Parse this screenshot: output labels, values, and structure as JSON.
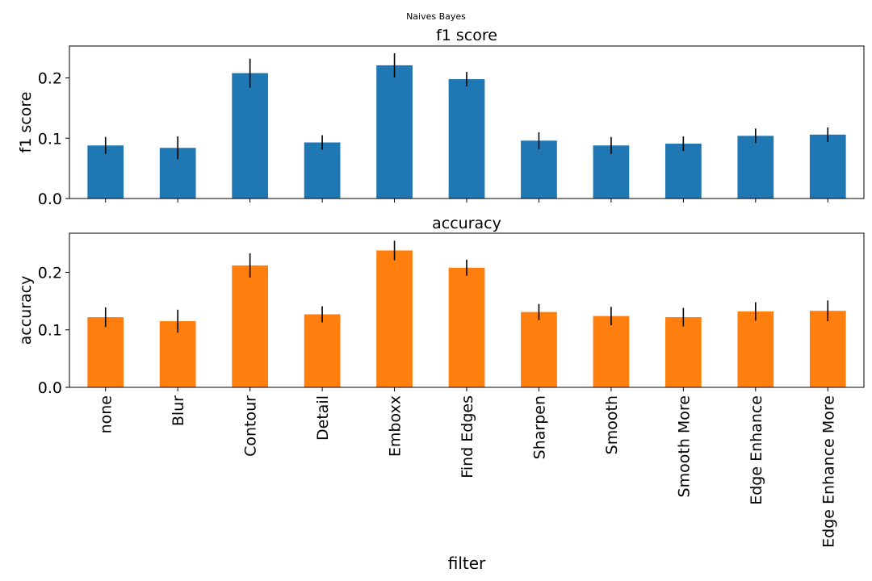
{
  "figure": {
    "suptitle": "Naives Bayes",
    "xlabel": "filter"
  },
  "chart_data": [
    {
      "type": "bar",
      "title": "f1 score",
      "ylabel": "f1 score",
      "xlabel": "",
      "color": "#1f77b4",
      "error_color": "#000000",
      "ylim": [
        0,
        0.253
      ],
      "yticks": [
        0.0,
        0.1,
        0.2
      ],
      "ytick_labels": [
        "0.0",
        "0.1",
        "0.2"
      ],
      "grid": false,
      "categories": [
        "none",
        "Blur",
        "Contour",
        "Detail",
        "Emboxx",
        "Find Edges",
        "Sharpen",
        "Smooth",
        "Smooth More",
        "Edge Enhance",
        "Edge Enhance More"
      ],
      "values": [
        0.088,
        0.084,
        0.208,
        0.093,
        0.221,
        0.198,
        0.096,
        0.088,
        0.091,
        0.104,
        0.106
      ],
      "errors": [
        0.014,
        0.019,
        0.024,
        0.012,
        0.02,
        0.012,
        0.014,
        0.014,
        0.012,
        0.012,
        0.012
      ]
    },
    {
      "type": "bar",
      "title": "accuracy",
      "ylabel": "accuracy",
      "xlabel": "filter",
      "color": "#ff7f0e",
      "error_color": "#000000",
      "ylim": [
        0,
        0.268
      ],
      "yticks": [
        0.0,
        0.1,
        0.2
      ],
      "ytick_labels": [
        "0.0",
        "0.1",
        "0.2"
      ],
      "grid": false,
      "categories": [
        "none",
        "Blur",
        "Contour",
        "Detail",
        "Emboxx",
        "Find Edges",
        "Sharpen",
        "Smooth",
        "Smooth More",
        "Edge Enhance",
        "Edge Enhance More"
      ],
      "values": [
        0.122,
        0.115,
        0.212,
        0.127,
        0.238,
        0.208,
        0.131,
        0.124,
        0.122,
        0.132,
        0.133
      ],
      "errors": [
        0.017,
        0.02,
        0.021,
        0.014,
        0.017,
        0.014,
        0.014,
        0.016,
        0.016,
        0.016,
        0.018
      ]
    }
  ]
}
